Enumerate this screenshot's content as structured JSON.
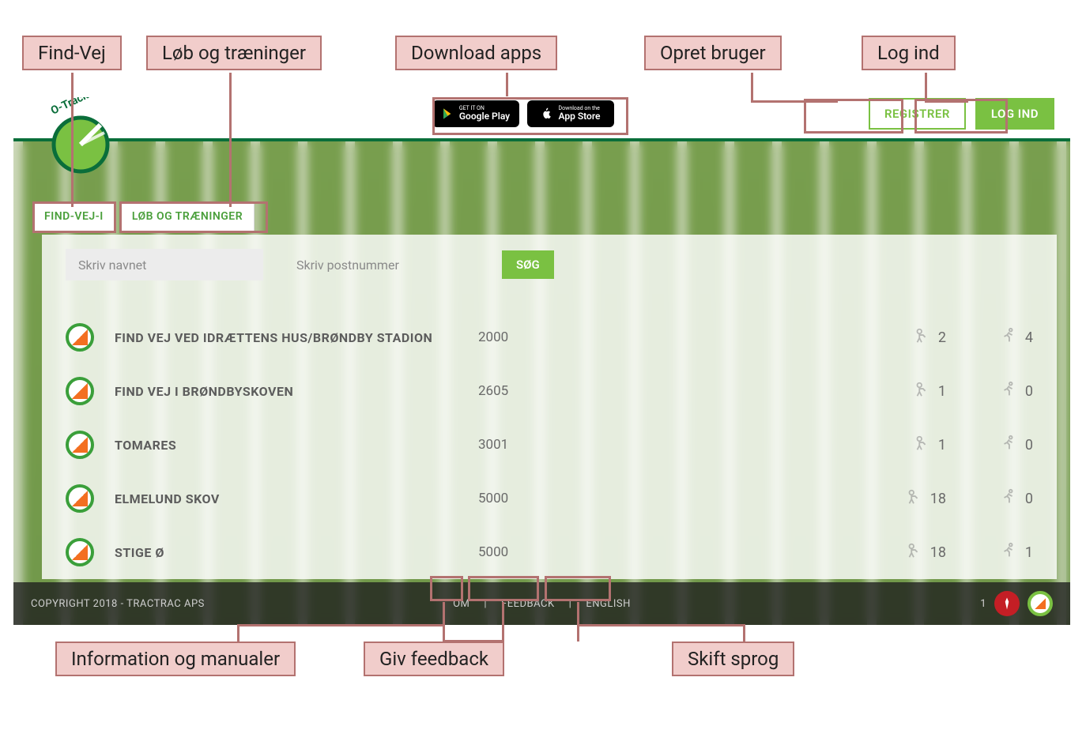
{
  "callouts": {
    "findvej": "Find-Vej",
    "lob": "Løb og træninger",
    "download": "Download apps",
    "opret": "Opret bruger",
    "login": "Log ind",
    "info": "Information og manualer",
    "feedback": "Giv feedback",
    "sprog": "Skift sprog"
  },
  "topbar": {
    "google_tiny": "GET IT ON",
    "google_big": "Google Play",
    "apple_tiny": "Download on the",
    "apple_big": "App Store",
    "register": "REGISTRER",
    "login": "LOG IND"
  },
  "tabs": {
    "t1": "FIND-VEJ-I",
    "t2": "LØB OG TRÆNINGER"
  },
  "search": {
    "name_placeholder": "Skriv navnet",
    "post_placeholder": "Skriv postnummer",
    "go": "SØG"
  },
  "rows": [
    {
      "title": "FIND VEJ VED IDRÆTTENS HUS/BRØNDBY STADION",
      "code": "2000",
      "a": "2",
      "b": "4"
    },
    {
      "title": "FIND VEJ I BRØNDBYSKOVEN",
      "code": "2605",
      "a": "1",
      "b": "0"
    },
    {
      "title": "TOMARES",
      "code": "3001",
      "a": "1",
      "b": "0"
    },
    {
      "title": "ELMELUND SKOV",
      "code": "5000",
      "a": "18",
      "b": "0"
    },
    {
      "title": "STIGE Ø",
      "code": "5000",
      "a": "18",
      "b": "1"
    }
  ],
  "footer": {
    "copy": "COPYRIGHT 2018 - TRACTRAC APS",
    "om": "OM",
    "feedback": "FEEDBACK",
    "english": "ENGLISH",
    "count": "1"
  },
  "colors": {
    "accent": "#7ac142",
    "callout_bg": "#f1cdcb",
    "callout_border": "#b37270"
  }
}
